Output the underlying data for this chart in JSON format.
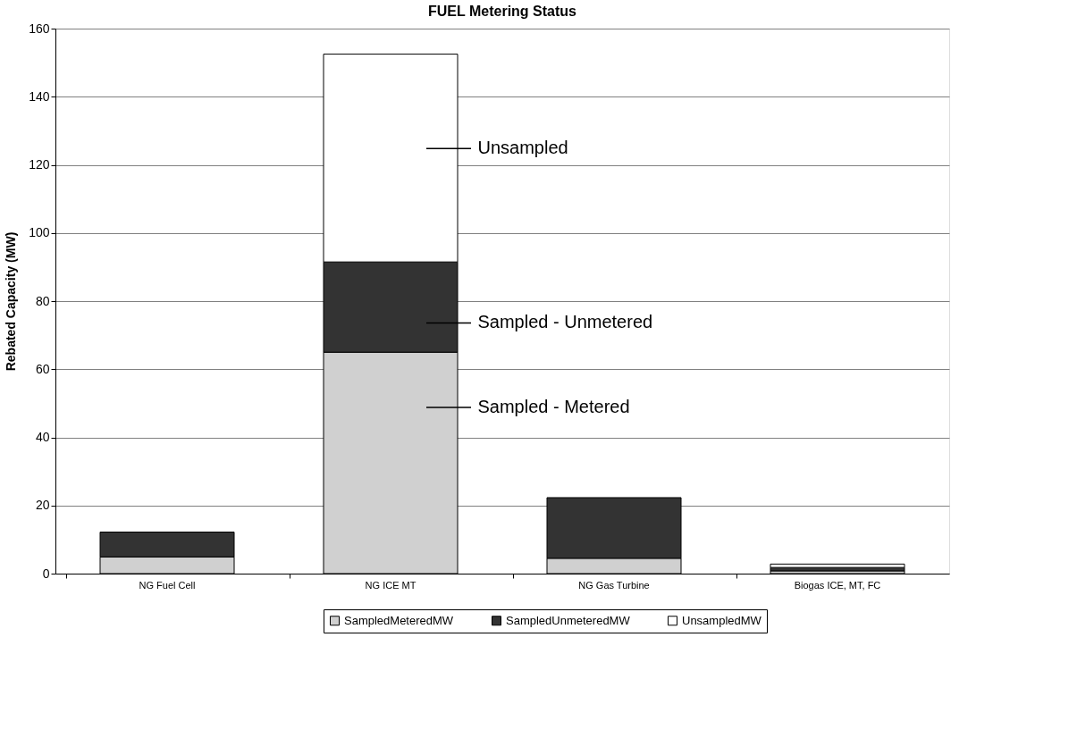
{
  "chart_data": {
    "type": "bar",
    "title": "FUEL Metering Status",
    "ylabel": "Rebated Capacity (MW)",
    "categories": [
      "NG Fuel Cell",
      "NG ICE MT",
      "NG Gas Turbine",
      "Biogas ICE, MT, FC"
    ],
    "stacked": true,
    "series": [
      {
        "name": "SampledMeteredMW",
        "color": "#d0d0d0",
        "values": [
          4.9,
          65,
          4.5,
          0.8
        ]
      },
      {
        "name": "SampledUnmeteredMW",
        "color": "#333333",
        "values": [
          7.3,
          26.5,
          17.8,
          1.0
        ]
      },
      {
        "name": "UnsampledMW",
        "color": "#ffffff",
        "values": [
          null,
          61,
          null,
          1.0
        ]
      }
    ],
    "ylim": [
      0,
      160
    ],
    "yticks": [
      0,
      20,
      40,
      60,
      80,
      100,
      120,
      140,
      160
    ],
    "grid": "y",
    "legend": "bottom",
    "annotations": [
      "Unsampled",
      "Sampled - Unmetered",
      "Sampled - Metered"
    ]
  }
}
